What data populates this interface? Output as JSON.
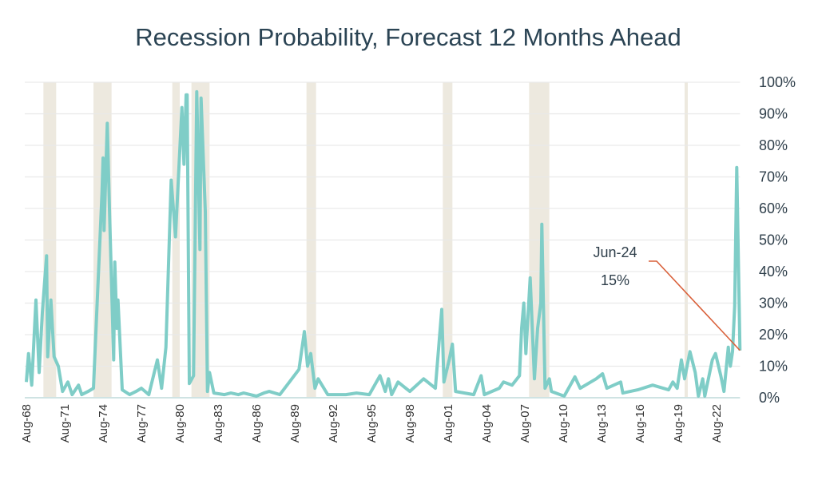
{
  "chart_data": {
    "type": "line",
    "title": "Recession Probability, Forecast 12 Months Ahead",
    "xlabel": "",
    "ylabel": "",
    "ylim": [
      0,
      100
    ],
    "y_unit": "%",
    "y_axis_side": "right",
    "grid": "horizontal",
    "y_ticks": [
      "0%",
      "10%",
      "20%",
      "30%",
      "40%",
      "50%",
      "60%",
      "70%",
      "80%",
      "90%",
      "100%"
    ],
    "x_ticks": [
      "Aug-68",
      "Aug-71",
      "Aug-74",
      "Aug-77",
      "Aug-80",
      "Aug-83",
      "Aug-86",
      "Aug-89",
      "Aug-92",
      "Aug-95",
      "Aug-98",
      "Aug-01",
      "Aug-04",
      "Aug-07",
      "Aug-10",
      "Aug-13",
      "Aug-16",
      "Aug-19",
      "Aug-22"
    ],
    "x_range": [
      "1968-08",
      "2024-06"
    ],
    "recession_bands": [
      [
        "1969-12",
        "1970-11"
      ],
      [
        "1973-11",
        "1975-03"
      ],
      [
        "1980-01",
        "1980-07"
      ],
      [
        "1981-07",
        "1982-11"
      ],
      [
        "1990-07",
        "1991-03"
      ],
      [
        "2001-03",
        "2001-11"
      ],
      [
        "2007-12",
        "2009-06"
      ],
      [
        "2020-02",
        "2020-04"
      ]
    ],
    "series": [
      {
        "values": [
          [
            "1968-08",
            5
          ],
          [
            "1968-10",
            14
          ],
          [
            "1969-01",
            4
          ],
          [
            "1969-05",
            31
          ],
          [
            "1969-08",
            8
          ],
          [
            "1969-11",
            27
          ],
          [
            "1970-03",
            45
          ],
          [
            "1970-04",
            13
          ],
          [
            "1970-07",
            31
          ],
          [
            "1970-10",
            13
          ],
          [
            "1971-02",
            10
          ],
          [
            "1971-06",
            2
          ],
          [
            "1971-11",
            5
          ],
          [
            "1972-03",
            1
          ],
          [
            "1972-09",
            4
          ],
          [
            "1972-12",
            1
          ],
          [
            "1973-06",
            2
          ],
          [
            "1973-11",
            3
          ],
          [
            "1974-03",
            34
          ],
          [
            "1974-07",
            65
          ],
          [
            "1974-08",
            76
          ],
          [
            "1974-09",
            53
          ],
          [
            "1974-12",
            87
          ],
          [
            "1975-02",
            60
          ],
          [
            "1975-06",
            12
          ],
          [
            "1975-07",
            43
          ],
          [
            "1975-09",
            22
          ],
          [
            "1975-10",
            31
          ],
          [
            "1976-02",
            2.5
          ],
          [
            "1976-09",
            1
          ],
          [
            "1977-03",
            2
          ],
          [
            "1977-08",
            3
          ],
          [
            "1978-03",
            1
          ],
          [
            "1978-11",
            12
          ],
          [
            "1979-03",
            3
          ],
          [
            "1979-07",
            16
          ],
          [
            "1979-12",
            69
          ],
          [
            "1980-04",
            51
          ],
          [
            "1980-10",
            92
          ],
          [
            "1980-12",
            74
          ],
          [
            "1981-02",
            96
          ],
          [
            "1981-03",
            96
          ],
          [
            "1981-05",
            4.5
          ],
          [
            "1981-09",
            7
          ],
          [
            "1981-12",
            97
          ],
          [
            "1982-03",
            47
          ],
          [
            "1982-04",
            95
          ],
          [
            "1982-08",
            59
          ],
          [
            "1982-10",
            2
          ],
          [
            "1982-12",
            8
          ],
          [
            "1983-04",
            1.5
          ],
          [
            "1984-02",
            1
          ],
          [
            "1984-08",
            1.5
          ],
          [
            "1985-03",
            1
          ],
          [
            "1985-08",
            1.5
          ],
          [
            "1986-08",
            0.5
          ],
          [
            "1987-03",
            1.5
          ],
          [
            "1987-08",
            2
          ],
          [
            "1988-06",
            1
          ],
          [
            "1989-03",
            5
          ],
          [
            "1989-12",
            9
          ],
          [
            "1990-05",
            21
          ],
          [
            "1990-08",
            10
          ],
          [
            "1990-11",
            14
          ],
          [
            "1991-03",
            3
          ],
          [
            "1991-06",
            6
          ],
          [
            "1992-03",
            1
          ],
          [
            "1993-08",
            1
          ],
          [
            "1994-06",
            1.5
          ],
          [
            "1995-06",
            1
          ],
          [
            "1996-04",
            7
          ],
          [
            "1996-09",
            2
          ],
          [
            "1996-12",
            6
          ],
          [
            "1997-03",
            1
          ],
          [
            "1997-09",
            5
          ],
          [
            "1998-08",
            2
          ],
          [
            "1999-09",
            6
          ],
          [
            "2000-08",
            3
          ],
          [
            "2001-02",
            28
          ],
          [
            "2001-04",
            5
          ],
          [
            "2001-09",
            12
          ],
          [
            "2001-12",
            17
          ],
          [
            "2002-03",
            2
          ],
          [
            "2003-08",
            1
          ],
          [
            "2004-03",
            7
          ],
          [
            "2004-06",
            1
          ],
          [
            "2005-08",
            3
          ],
          [
            "2005-12",
            5
          ],
          [
            "2006-08",
            4
          ],
          [
            "2007-03",
            7
          ],
          [
            "2007-05",
            22
          ],
          [
            "2007-07",
            30
          ],
          [
            "2007-09",
            14
          ],
          [
            "2008-01",
            38
          ],
          [
            "2008-05",
            6
          ],
          [
            "2008-08",
            22
          ],
          [
            "2008-11",
            30
          ],
          [
            "2008-12",
            55
          ],
          [
            "2009-03",
            3
          ],
          [
            "2009-07",
            6
          ],
          [
            "2009-09",
            2
          ],
          [
            "2010-09",
            0.5
          ],
          [
            "2011-07",
            6.6
          ],
          [
            "2011-12",
            3
          ],
          [
            "2013-03",
            6
          ],
          [
            "2013-09",
            7.6
          ],
          [
            "2014-01",
            3
          ],
          [
            "2015-02",
            5
          ],
          [
            "2015-04",
            1.5
          ],
          [
            "2016-06",
            2.5
          ],
          [
            "2017-08",
            4
          ],
          [
            "2018-11",
            2.5
          ],
          [
            "2019-03",
            5
          ],
          [
            "2019-07",
            3
          ],
          [
            "2019-11",
            12
          ],
          [
            "2020-02",
            6
          ],
          [
            "2020-07",
            14.6
          ],
          [
            "2020-12",
            8
          ],
          [
            "2021-03",
            0.5
          ],
          [
            "2021-07",
            6
          ],
          [
            "2021-09",
            0.5
          ],
          [
            "2022-04",
            12
          ],
          [
            "2022-07",
            14
          ],
          [
            "2022-12",
            7
          ],
          [
            "2023-03",
            2
          ],
          [
            "2023-07",
            16
          ],
          [
            "2023-09",
            10
          ],
          [
            "2023-11",
            14.6
          ],
          [
            "2024-01",
            29
          ],
          [
            "2024-03",
            73
          ],
          [
            "2024-06",
            15
          ]
        ]
      }
    ],
    "annotation": {
      "label": "Jun-24",
      "value": "15%",
      "target": [
        "2024-06",
        15
      ]
    },
    "colors": {
      "line": "#7fcdc7",
      "recession_band": "#ede9df",
      "grid": "#e9e9e9",
      "annotation_line": "#d9603a",
      "text": "#2e3e4a"
    }
  }
}
